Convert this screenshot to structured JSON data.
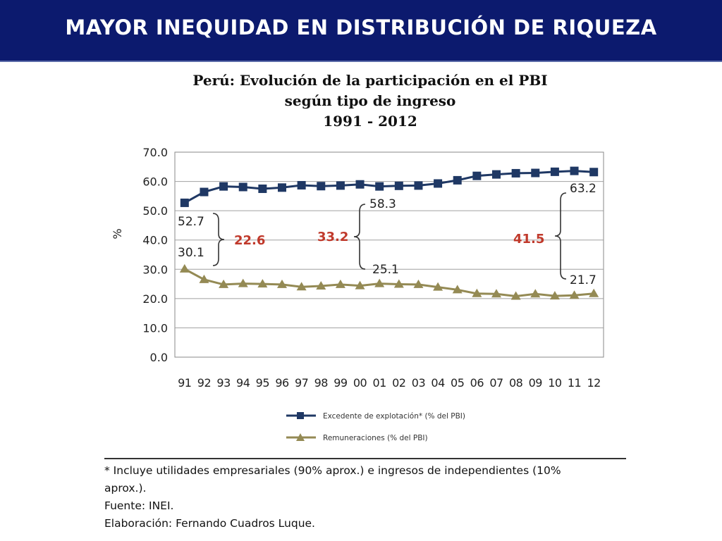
{
  "banner": {
    "title": "MAYOR INEQUIDAD EN DISTRIBUCIÓN DE RIQUEZA"
  },
  "chart_data": {
    "type": "line",
    "title": "Perú: Evolución de la participación en el PBI",
    "subtitle": "según tipo de ingreso",
    "period": "1991 - 2012",
    "ylabel": "%",
    "xlabel": "",
    "ylim": [
      0,
      70
    ],
    "yticks": [
      "0.0",
      "10.0",
      "20.0",
      "30.0",
      "40.0",
      "50.0",
      "60.0",
      "70.0"
    ],
    "categories": [
      "91",
      "92",
      "93",
      "94",
      "95",
      "96",
      "97",
      "98",
      "99",
      "00",
      "01",
      "02",
      "03",
      "04",
      "05",
      "06",
      "07",
      "08",
      "09",
      "10",
      "11",
      "12"
    ],
    "grid": true,
    "legend_position": "bottom",
    "series": [
      {
        "name": "Excedente de explotación* (% del PBI)",
        "color": "#1f3864",
        "marker": "square",
        "values": [
          52.7,
          56.4,
          58.3,
          58.1,
          57.5,
          57.9,
          58.7,
          58.4,
          58.6,
          59.0,
          58.3,
          58.5,
          58.6,
          59.3,
          60.4,
          61.9,
          62.4,
          62.8,
          62.9,
          63.3,
          63.6,
          63.2
        ]
      },
      {
        "name": "Remuneraciones (% del PBI)",
        "color": "#948a54",
        "marker": "triangle",
        "values": [
          30.1,
          26.5,
          24.8,
          25.1,
          25.0,
          24.8,
          24.0,
          24.3,
          24.8,
          24.4,
          25.1,
          24.9,
          24.8,
          23.9,
          23.0,
          21.7,
          21.6,
          20.8,
          21.6,
          20.9,
          21.1,
          21.7
        ]
      }
    ],
    "annotations": [
      {
        "top": "52.7",
        "bottom": "30.1",
        "gap": "22.6"
      },
      {
        "top": "58.3",
        "bottom": "25.1",
        "gap": "33.2"
      },
      {
        "top": "63.2",
        "bottom": "21.7",
        "gap": "41.5"
      }
    ],
    "gap_color": "#c0392b"
  },
  "footnotes": {
    "line1": "* Incluye utilidades empresariales (90% aprox.) e ingresos de independientes (10%",
    "line2": "aprox.).",
    "source": "Fuente: INEI.",
    "author": "Elaboración: Fernando Cuadros Luque."
  }
}
